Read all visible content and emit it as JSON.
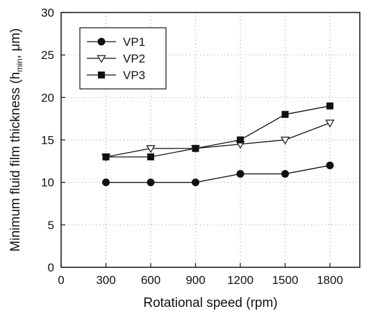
{
  "chart_data": {
    "type": "line",
    "xlabel": "Rotational speed (rpm)",
    "ylabel_main": "Minimum fluid film thickness (h",
    "ylabel_sub": "min",
    "ylabel_end": ", μm)",
    "x": [
      300,
      600,
      900,
      1200,
      1500,
      1800
    ],
    "xlim": [
      0,
      2000
    ],
    "ylim": [
      0,
      30
    ],
    "xticks": [
      0,
      300,
      600,
      900,
      1200,
      1500,
      1800
    ],
    "yticks": [
      0,
      5,
      10,
      15,
      20,
      25,
      30
    ],
    "grid": "dotted",
    "legend_position": "top-left",
    "series": [
      {
        "name": "VP1",
        "marker": "filled-circle",
        "values": [
          10,
          10,
          10,
          11,
          11,
          12
        ]
      },
      {
        "name": "VP2",
        "marker": "open-triangle-down",
        "values": [
          13,
          14,
          14,
          14.5,
          15,
          17
        ]
      },
      {
        "name": "VP3",
        "marker": "filled-square",
        "values": [
          13,
          13,
          14,
          15,
          18,
          19
        ]
      }
    ]
  }
}
